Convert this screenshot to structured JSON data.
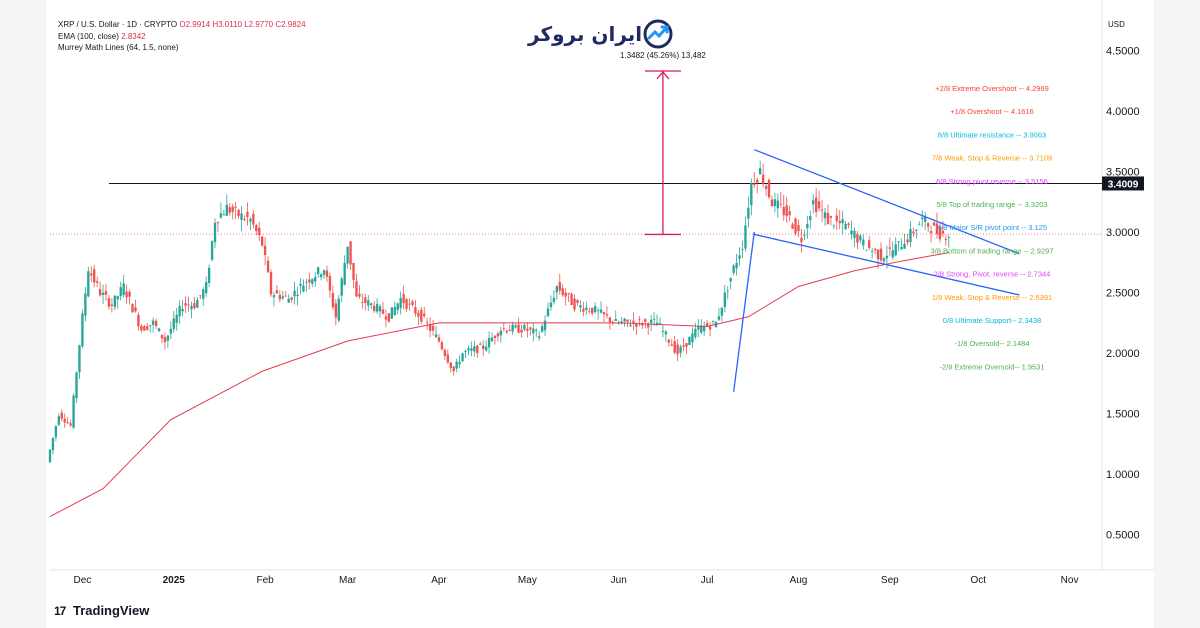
{
  "legend": {
    "symbol_line": "XRP / U.S. Dollar · 1D · CRYPTO",
    "ohlc": [
      "O2.9914",
      "H3.0110",
      "L2.9770",
      "C2.9824"
    ],
    "ema_label": "EMA (100, close)",
    "ema_value": "2.8342",
    "murrey_label": "Murrey Math Lines (64, 1.5, none)"
  },
  "brand": {
    "name": "ایران بروکر"
  },
  "footer": {
    "logo_mark": "17",
    "logo_text": "TradingView"
  },
  "currency": "USD",
  "colors": {
    "up": "#26a69a",
    "down": "#ef5350",
    "ema": "#e53950",
    "trendline": "#2962ff",
    "measure": "#d81b60",
    "resistance": "#131722",
    "price_tag": "#131722"
  },
  "chart_data": {
    "type": "candlestick",
    "x_range": [
      "2024-11-20",
      "2025-11-12"
    ],
    "ylim": [
      0.25,
      4.85
    ],
    "y_ticks": [
      0.5,
      1.0,
      1.5,
      2.0,
      2.5,
      3.0,
      3.5,
      4.0,
      4.5
    ],
    "y_tick_labels": [
      "0.5000",
      "1.0000",
      "1.5000",
      "2.0000",
      "2.5000",
      "3.0000",
      "3.5000",
      "4.0000",
      "4.5000"
    ],
    "x_ticks": [
      {
        "date": "2024-12-01",
        "label": "Dec"
      },
      {
        "date": "2025-01-01",
        "label": "2025"
      },
      {
        "date": "2025-02-01",
        "label": "Feb"
      },
      {
        "date": "2025-03-01",
        "label": "Mar"
      },
      {
        "date": "2025-04-01",
        "label": "Apr"
      },
      {
        "date": "2025-05-01",
        "label": "May"
      },
      {
        "date": "2025-06-01",
        "label": "Jun"
      },
      {
        "date": "2025-07-01",
        "label": "Jul"
      },
      {
        "date": "2025-08-01",
        "label": "Aug"
      },
      {
        "date": "2025-09-01",
        "label": "Sep"
      },
      {
        "date": "2025-10-01",
        "label": "Oct"
      },
      {
        "date": "2025-11-01",
        "label": "Nov"
      }
    ],
    "price_path": [
      [
        "2024-11-20",
        1.1
      ],
      [
        "2024-11-24",
        1.5
      ],
      [
        "2024-11-28",
        1.4
      ],
      [
        "2024-12-02",
        2.3
      ],
      [
        "2024-12-04",
        2.7
      ],
      [
        "2024-12-08",
        2.5
      ],
      [
        "2024-12-12",
        2.4
      ],
      [
        "2024-12-16",
        2.55
      ],
      [
        "2024-12-22",
        2.2
      ],
      [
        "2024-12-26",
        2.25
      ],
      [
        "2024-12-30",
        2.1
      ],
      [
        "2025-01-05",
        2.4
      ],
      [
        "2025-01-09",
        2.4
      ],
      [
        "2025-01-13",
        2.55
      ],
      [
        "2025-01-16",
        3.1
      ],
      [
        "2025-01-20",
        3.2
      ],
      [
        "2025-01-23",
        3.15
      ],
      [
        "2025-01-28",
        3.1
      ],
      [
        "2025-02-01",
        2.9
      ],
      [
        "2025-02-04",
        2.5
      ],
      [
        "2025-02-10",
        2.45
      ],
      [
        "2025-02-16",
        2.6
      ],
      [
        "2025-02-22",
        2.7
      ],
      [
        "2025-02-26",
        2.3
      ],
      [
        "2025-03-02",
        2.9
      ],
      [
        "2025-03-05",
        2.45
      ],
      [
        "2025-03-10",
        2.4
      ],
      [
        "2025-03-16",
        2.3
      ],
      [
        "2025-03-20",
        2.45
      ],
      [
        "2025-03-27",
        2.3
      ],
      [
        "2025-04-02",
        2.1
      ],
      [
        "2025-04-07",
        1.85
      ],
      [
        "2025-04-10",
        2.0
      ],
      [
        "2025-04-17",
        2.05
      ],
      [
        "2025-04-23",
        2.2
      ],
      [
        "2025-05-01",
        2.2
      ],
      [
        "2025-05-06",
        2.15
      ],
      [
        "2025-05-12",
        2.55
      ],
      [
        "2025-05-18",
        2.4
      ],
      [
        "2025-05-25",
        2.35
      ],
      [
        "2025-06-01",
        2.25
      ],
      [
        "2025-06-08",
        2.25
      ],
      [
        "2025-06-15",
        2.25
      ],
      [
        "2025-06-22",
        2.0
      ],
      [
        "2025-06-29",
        2.2
      ],
      [
        "2025-07-05",
        2.25
      ],
      [
        "2025-07-11",
        2.7
      ],
      [
        "2025-07-14",
        2.9
      ],
      [
        "2025-07-17",
        3.4
      ],
      [
        "2025-07-20",
        3.5
      ],
      [
        "2025-07-24",
        3.25
      ],
      [
        "2025-07-29",
        3.15
      ],
      [
        "2025-08-03",
        2.95
      ],
      [
        "2025-08-07",
        3.25
      ],
      [
        "2025-08-12",
        3.1
      ],
      [
        "2025-08-18",
        3.05
      ],
      [
        "2025-08-24",
        2.9
      ],
      [
        "2025-08-30",
        2.8
      ],
      [
        "2025-09-03",
        2.85
      ],
      [
        "2025-09-08",
        2.95
      ],
      [
        "2025-09-13",
        3.1
      ],
      [
        "2025-09-18",
        3.0
      ],
      [
        "2025-09-21",
        2.98
      ]
    ],
    "ema_path": [
      [
        "2024-11-20",
        0.65
      ],
      [
        "2024-12-08",
        0.88
      ],
      [
        "2024-12-31",
        1.45
      ],
      [
        "2025-01-31",
        1.85
      ],
      [
        "2025-03-01",
        2.1
      ],
      [
        "2025-04-01",
        2.25
      ],
      [
        "2025-05-01",
        2.25
      ],
      [
        "2025-06-01",
        2.25
      ],
      [
        "2025-07-01",
        2.22
      ],
      [
        "2025-07-15",
        2.3
      ],
      [
        "2025-08-01",
        2.55
      ],
      [
        "2025-08-20",
        2.68
      ],
      [
        "2025-09-05",
        2.76
      ],
      [
        "2025-09-21",
        2.83
      ]
    ],
    "ema_label": "EMA (100, close)",
    "resistance_level": 3.4009,
    "resistance_start": "2024-12-10",
    "last_price": 2.9824,
    "price_tag": "3.4009",
    "measure": {
      "date": "2025-06-16",
      "from": 2.98,
      "to": 4.33,
      "label": "1.3482 (45.26%) 13,482"
    },
    "trendlines": [
      {
        "from": [
          "2025-07-17",
          3.68
        ],
        "to": [
          "2025-10-15",
          2.82
        ]
      },
      {
        "from": [
          "2025-07-17",
          2.98
        ],
        "to": [
          "2025-10-15",
          2.48
        ]
      },
      {
        "from": [
          "2025-07-10",
          1.68
        ],
        "to": [
          "2025-07-17",
          3.0
        ]
      }
    ],
    "murrey_levels": [
      {
        "label": "+2/8 Extreme Overshoot",
        "value": 4.2969,
        "text": "+2/8 Extreme Overshoot --  4.2969",
        "color": "#f44336"
      },
      {
        "label": "+1/8 Overshoot",
        "value": 4.1616,
        "text": "+1/8 Overshoot --  4.1616",
        "color": "#f44336"
      },
      {
        "label": "8/8 Ultimate resistance",
        "value": 3.9063,
        "text": "8/8 Ultimate resistance --  3.9063",
        "color": "#00bcd4"
      },
      {
        "label": "7/8 Weak, Stop & Reverse",
        "value": 3.7109,
        "text": "7/8 Weak, Stop & Reverse --  3.7109",
        "color": "#ff9800"
      },
      {
        "label": "6/8 Strong pivot reverse",
        "value": 3.5156,
        "text": "6/8 Strong pivot reverse --  3.5156",
        "color": "#e040fb"
      },
      {
        "label": "5/8 Top of trading range",
        "value": 3.3203,
        "text": "5/8 Top of trading range --  3.3203",
        "color": "#4caf50"
      },
      {
        "label": "4/8 Major S/R pivot point",
        "value": 3.125,
        "text": "4/8 Major S/R pivot point --  3.125",
        "color": "#2196f3"
      },
      {
        "label": "3/8 Bottom of trading range",
        "value": 2.9297,
        "text": "3/8 Bottom of trading range --  2.9297",
        "color": "#4caf50"
      },
      {
        "label": "2/8 Strong, Pivot, reverse",
        "value": 2.7344,
        "text": "2/8 Strong, Pivot, reverse --  2.7344",
        "color": "#e040fb"
      },
      {
        "label": "1/8 Weak, Stop & Reverse",
        "value": 2.5391,
        "text": "1/8 Weak, Stop & Reverse --  2.5391",
        "color": "#ff9800"
      },
      {
        "label": "0/8 Ultimate Support",
        "value": 2.3438,
        "text": "0/8 Ultimate Support--  2.3438",
        "color": "#00bcd4"
      },
      {
        "label": "-1/8 Oversold",
        "value": 2.1484,
        "text": "-1/8 Oversold--  2.1484",
        "color": "#4caf50"
      },
      {
        "label": "-2/8 Extreme Oversold",
        "value": 1.9531,
        "text": "-2/8 Extreme Oversold--  1.9531",
        "color": "#4caf50"
      }
    ]
  }
}
